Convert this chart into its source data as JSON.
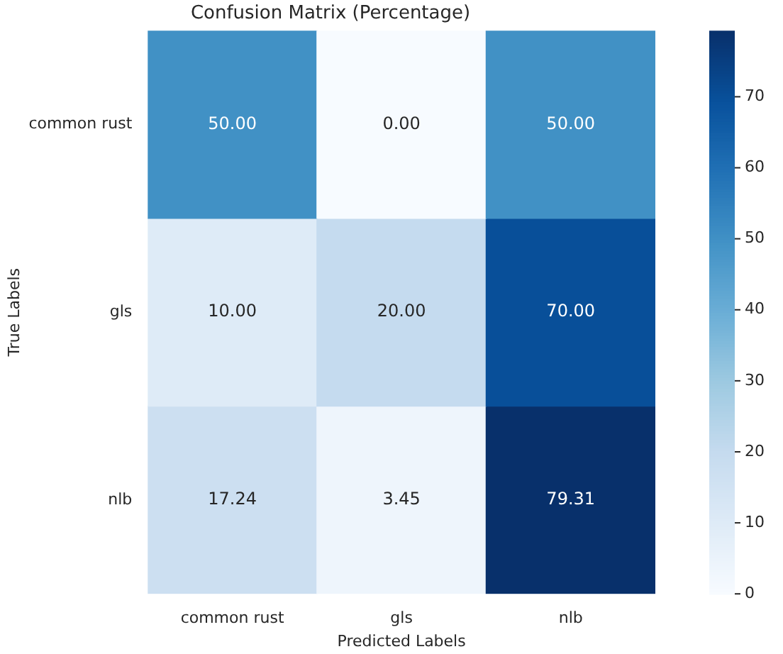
{
  "chart_data": {
    "type": "heatmap",
    "title": "Confusion Matrix (Percentage)",
    "xlabel": "Predicted Labels",
    "ylabel": "True Labels",
    "categories": [
      "common rust",
      "gls",
      "nlb"
    ],
    "y_categories": [
      "common rust",
      "gls",
      "nlb"
    ],
    "cells": [
      [
        50.0,
        0.0,
        50.0
      ],
      [
        10.0,
        20.0,
        70.0
      ],
      [
        17.24,
        3.45,
        79.31
      ]
    ],
    "cell_labels": [
      [
        "50.00",
        "0.00",
        "50.00"
      ],
      [
        "10.00",
        "20.00",
        "70.00"
      ],
      [
        "17.24",
        "3.45",
        "79.31"
      ]
    ],
    "clim": [
      0,
      79.31
    ],
    "cticks": [
      0,
      10,
      20,
      30,
      40,
      50,
      60,
      70
    ]
  }
}
